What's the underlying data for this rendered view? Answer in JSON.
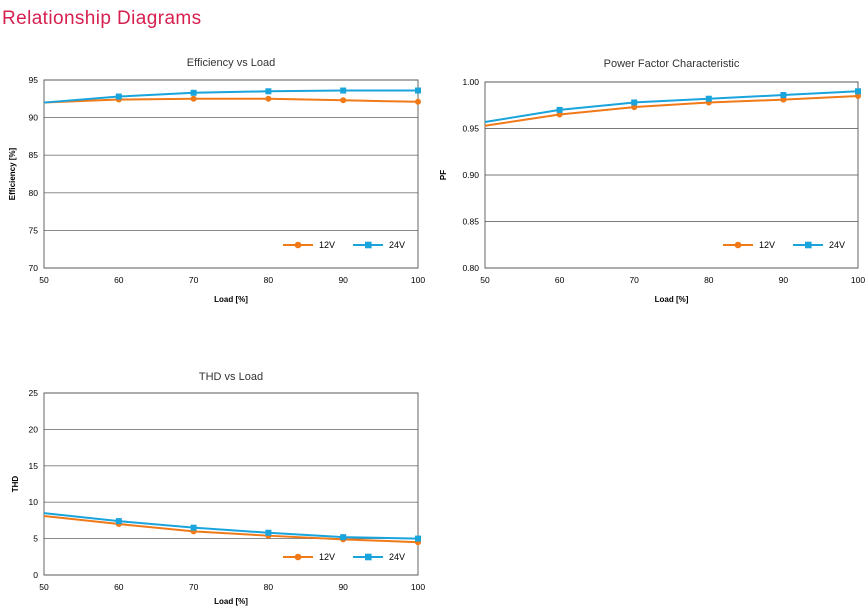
{
  "page": {
    "title": "Relationship Diagrams",
    "accent": "#d6204f"
  },
  "colors": {
    "12V": "#f07918",
    "24V": "#1aa4dc"
  },
  "chart_data": [
    {
      "id": "efficiency",
      "type": "line",
      "title": "Efficiency vs Load",
      "xlabel": "Load [%]",
      "ylabel": "Efficiency [%]",
      "xlim": [
        50,
        100
      ],
      "ylim": [
        70,
        95
      ],
      "xticks": [
        "50",
        "60",
        "70",
        "80",
        "90",
        "100"
      ],
      "yticks": [
        "70",
        "75",
        "80",
        "85",
        "90",
        "95"
      ],
      "grid": true,
      "legend": "bottom-right",
      "x": [
        50,
        60,
        70,
        80,
        90,
        100
      ],
      "series": [
        {
          "name": "12V",
          "marker": "circle",
          "values": [
            92.0,
            92.4,
            92.5,
            92.5,
            92.3,
            92.1
          ]
        },
        {
          "name": "24V",
          "marker": "square",
          "values": [
            92.0,
            92.8,
            93.3,
            93.5,
            93.6,
            93.6
          ]
        }
      ]
    },
    {
      "id": "pf",
      "type": "line",
      "title": "Power Factor Characteristic",
      "xlabel": "Load [%]",
      "ylabel": "PF",
      "xlim": [
        50,
        100
      ],
      "ylim": [
        0.8,
        1.0
      ],
      "xticks": [
        "50",
        "60",
        "70",
        "80",
        "90",
        "100"
      ],
      "yticks": [
        "0.80",
        "0.85",
        "0.90",
        "0.95",
        "1.00"
      ],
      "grid": true,
      "legend": "bottom-right",
      "x": [
        50,
        60,
        70,
        80,
        90,
        100
      ],
      "series": [
        {
          "name": "12V",
          "marker": "circle",
          "values": [
            0.953,
            0.965,
            0.973,
            0.978,
            0.981,
            0.985
          ]
        },
        {
          "name": "24V",
          "marker": "square",
          "values": [
            0.957,
            0.97,
            0.978,
            0.982,
            0.986,
            0.99
          ]
        }
      ]
    },
    {
      "id": "thd",
      "type": "line",
      "title": "THD vs Load",
      "xlabel": "Load [%]",
      "ylabel": "THD",
      "xlim": [
        50,
        100
      ],
      "ylim": [
        0,
        25
      ],
      "xticks": [
        "50",
        "60",
        "70",
        "80",
        "90",
        "100"
      ],
      "yticks": [
        "0",
        "5",
        "10",
        "15",
        "20",
        "25"
      ],
      "grid": true,
      "legend": "bottom-right",
      "x": [
        50,
        60,
        70,
        80,
        90,
        100
      ],
      "series": [
        {
          "name": "12V",
          "marker": "circle",
          "values": [
            8.1,
            7.0,
            6.0,
            5.4,
            4.9,
            4.5
          ]
        },
        {
          "name": "24V",
          "marker": "square",
          "values": [
            8.5,
            7.4,
            6.5,
            5.8,
            5.2,
            5.0
          ]
        }
      ]
    }
  ]
}
